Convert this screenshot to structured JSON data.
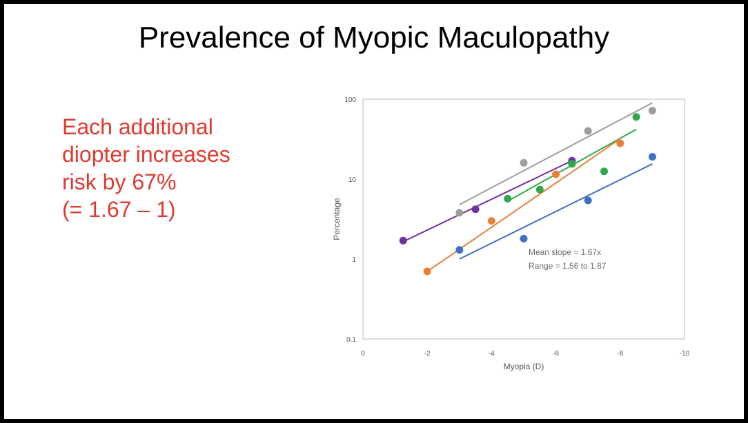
{
  "slide": {
    "title": "Prevalence of Myopic Maculopathy",
    "callout_lines": [
      "Each additional",
      "diopter increases",
      "risk by 67%",
      "(= 1.67 – 1)"
    ],
    "callout_color": "#e03a2f"
  },
  "chart_data": {
    "type": "scatter",
    "title": "",
    "xlabel": "Myopia (D)",
    "ylabel": "Percentage",
    "xlim": [
      0,
      -10
    ],
    "ylim": [
      0.1,
      100
    ],
    "yscale": "log",
    "x_ticks": [
      0,
      -2,
      -4,
      -6,
      -8,
      -10
    ],
    "x_tick_labels": [
      "0",
      "-2",
      "-4",
      "-6",
      "-8",
      "-10"
    ],
    "y_ticks": [
      0.1,
      1,
      10,
      100
    ],
    "y_tick_labels": [
      "0.1",
      "1",
      "10",
      "100"
    ],
    "grid": false,
    "legend": "none",
    "annotations": [
      "Mean slope = 1.67x",
      "Range = 1.56 to 1.87"
    ],
    "series": [
      {
        "color": "#9e9e9e",
        "x": [
          -3,
          -5,
          -7,
          -9
        ],
        "y": [
          3.8,
          16,
          40,
          72
        ],
        "fit": {
          "x": [
            -3,
            -9
          ],
          "y": [
            4.8,
            90
          ]
        }
      },
      {
        "color": "#7030a0",
        "x": [
          -1.25,
          -3.5,
          -6.5
        ],
        "y": [
          1.7,
          4.2,
          17
        ],
        "fit": {
          "x": [
            -1.25,
            -6.5
          ],
          "y": [
            1.65,
            17
          ]
        }
      },
      {
        "color": "#2ea84a",
        "x": [
          -4.5,
          -5.5,
          -6.5,
          -7.5,
          -8.5
        ],
        "y": [
          5.7,
          7.4,
          15.5,
          12.5,
          60
        ],
        "fit": {
          "x": [
            -4.5,
            -8.5
          ],
          "y": [
            5.3,
            42
          ]
        }
      },
      {
        "color": "#e8803a",
        "x": [
          -2,
          -4,
          -6,
          -8
        ],
        "y": [
          0.7,
          3,
          11.5,
          28
        ],
        "fit": {
          "x": [
            -2,
            -8
          ],
          "y": [
            0.7,
            32
          ]
        }
      },
      {
        "color": "#3f6fc9",
        "x": [
          -3,
          -5,
          -7,
          -9
        ],
        "y": [
          1.3,
          1.8,
          5.4,
          19
        ],
        "fit": {
          "x": [
            -3,
            -9
          ],
          "y": [
            1.0,
            15.5
          ]
        }
      }
    ]
  }
}
